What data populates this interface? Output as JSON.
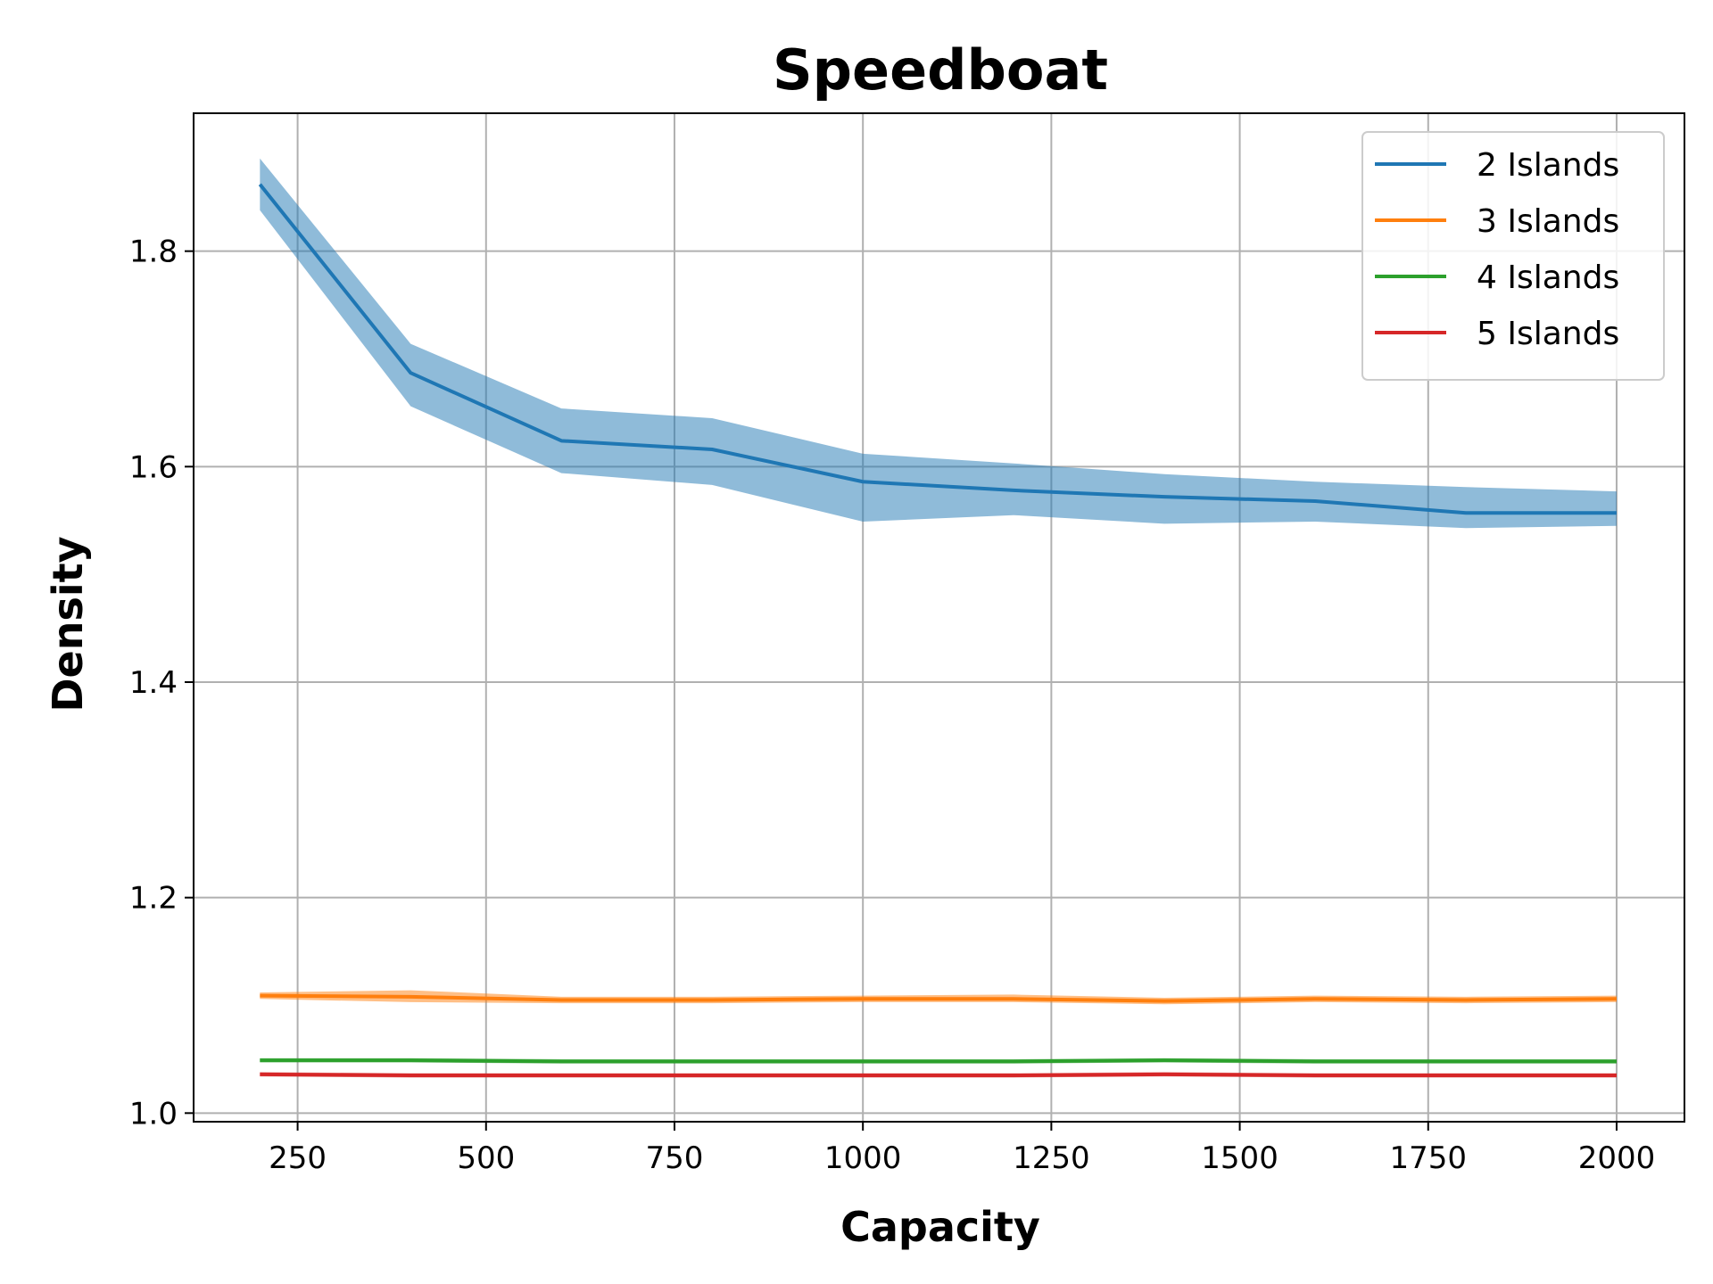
{
  "chart_data": {
    "type": "line",
    "title": "Speedboat",
    "xlabel": "Capacity",
    "ylabel": "Density",
    "xlim": [
      112,
      2090
    ],
    "ylim": [
      0.992,
      1.928
    ],
    "xticks": [
      250,
      500,
      750,
      1000,
      1250,
      1500,
      1750,
      2000
    ],
    "yticks": [
      1.0,
      1.2,
      1.4,
      1.6,
      1.8
    ],
    "xtick_labels": [
      "250",
      "500",
      "750",
      "1000",
      "1250",
      "1500",
      "1750",
      "2000"
    ],
    "ytick_labels": [
      "1.0",
      "1.2",
      "1.4",
      "1.6",
      "1.8"
    ],
    "grid": true,
    "legend_position": "top-right",
    "x": [
      200,
      400,
      600,
      800,
      1000,
      1200,
      1400,
      1600,
      1800,
      2000
    ],
    "series": [
      {
        "name": "2 Islands",
        "color": "#1f77b4",
        "values": [
          1.862,
          1.687,
          1.624,
          1.616,
          1.586,
          1.578,
          1.572,
          1.568,
          1.557,
          1.557
        ],
        "band_lower": [
          1.838,
          1.656,
          1.594,
          1.583,
          1.549,
          1.555,
          1.547,
          1.549,
          1.543,
          1.545
        ],
        "band_upper": [
          1.886,
          1.714,
          1.654,
          1.645,
          1.612,
          1.603,
          1.593,
          1.586,
          1.581,
          1.577
        ]
      },
      {
        "name": "3 Islands",
        "color": "#ff7f0e",
        "values": [
          1.109,
          1.108,
          1.105,
          1.105,
          1.106,
          1.106,
          1.104,
          1.106,
          1.105,
          1.106
        ],
        "band_lower": [
          1.106,
          1.103,
          1.102,
          1.102,
          1.103,
          1.103,
          1.101,
          1.103,
          1.102,
          1.103
        ],
        "band_upper": [
          1.112,
          1.114,
          1.108,
          1.108,
          1.109,
          1.11,
          1.107,
          1.109,
          1.108,
          1.109
        ]
      },
      {
        "name": "4 Islands",
        "color": "#2ca02c",
        "values": [
          1.049,
          1.049,
          1.048,
          1.048,
          1.048,
          1.048,
          1.049,
          1.048,
          1.048,
          1.048
        ],
        "band_lower": [
          1.047,
          1.047,
          1.046,
          1.046,
          1.046,
          1.046,
          1.047,
          1.046,
          1.046,
          1.046
        ],
        "band_upper": [
          1.051,
          1.051,
          1.05,
          1.05,
          1.05,
          1.05,
          1.051,
          1.05,
          1.05,
          1.05
        ]
      },
      {
        "name": "5 Islands",
        "color": "#d62728",
        "values": [
          1.036,
          1.035,
          1.035,
          1.035,
          1.035,
          1.035,
          1.036,
          1.035,
          1.035,
          1.035
        ],
        "band_lower": [
          1.034,
          1.033,
          1.033,
          1.033,
          1.033,
          1.033,
          1.034,
          1.033,
          1.033,
          1.033
        ],
        "band_upper": [
          1.038,
          1.037,
          1.037,
          1.037,
          1.037,
          1.037,
          1.038,
          1.037,
          1.037,
          1.037
        ]
      }
    ]
  }
}
